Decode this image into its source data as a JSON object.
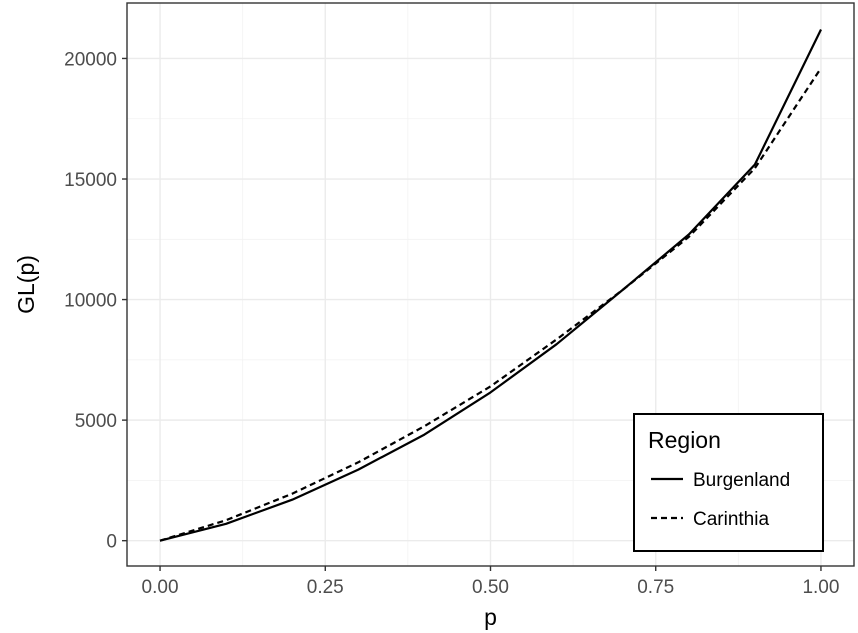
{
  "chart_data": {
    "type": "line",
    "xlabel": "p",
    "ylabel": "GL(p)",
    "xlim": [
      -0.05,
      1.05
    ],
    "ylim": [
      -1050,
      22300
    ],
    "x_ticks": [
      0.0,
      0.25,
      0.5,
      0.75,
      1.0
    ],
    "x_tick_labels": [
      "0.00",
      "0.25",
      "0.50",
      "0.75",
      "1.00"
    ],
    "y_ticks": [
      0,
      5000,
      10000,
      15000,
      20000
    ],
    "y_tick_labels": [
      "0",
      "5000",
      "10000",
      "15000",
      "20000"
    ],
    "grid": true,
    "legend": {
      "title": "Region",
      "placement": "bottom-right"
    },
    "x": [
      0.0,
      0.1,
      0.2,
      0.3,
      0.4,
      0.5,
      0.6,
      0.7,
      0.8,
      0.9,
      1.0
    ],
    "series": [
      {
        "name": "Burgenland",
        "linetype": "solid",
        "color": "#000000",
        "values": [
          0,
          700,
          1700,
          2950,
          4400,
          6150,
          8150,
          10400,
          12700,
          15600,
          21200
        ]
      },
      {
        "name": "Carinthia",
        "linetype": "dashed",
        "color": "#000000",
        "values": [
          0,
          850,
          1950,
          3250,
          4750,
          6400,
          8350,
          10400,
          12600,
          15450,
          19600
        ]
      }
    ]
  }
}
